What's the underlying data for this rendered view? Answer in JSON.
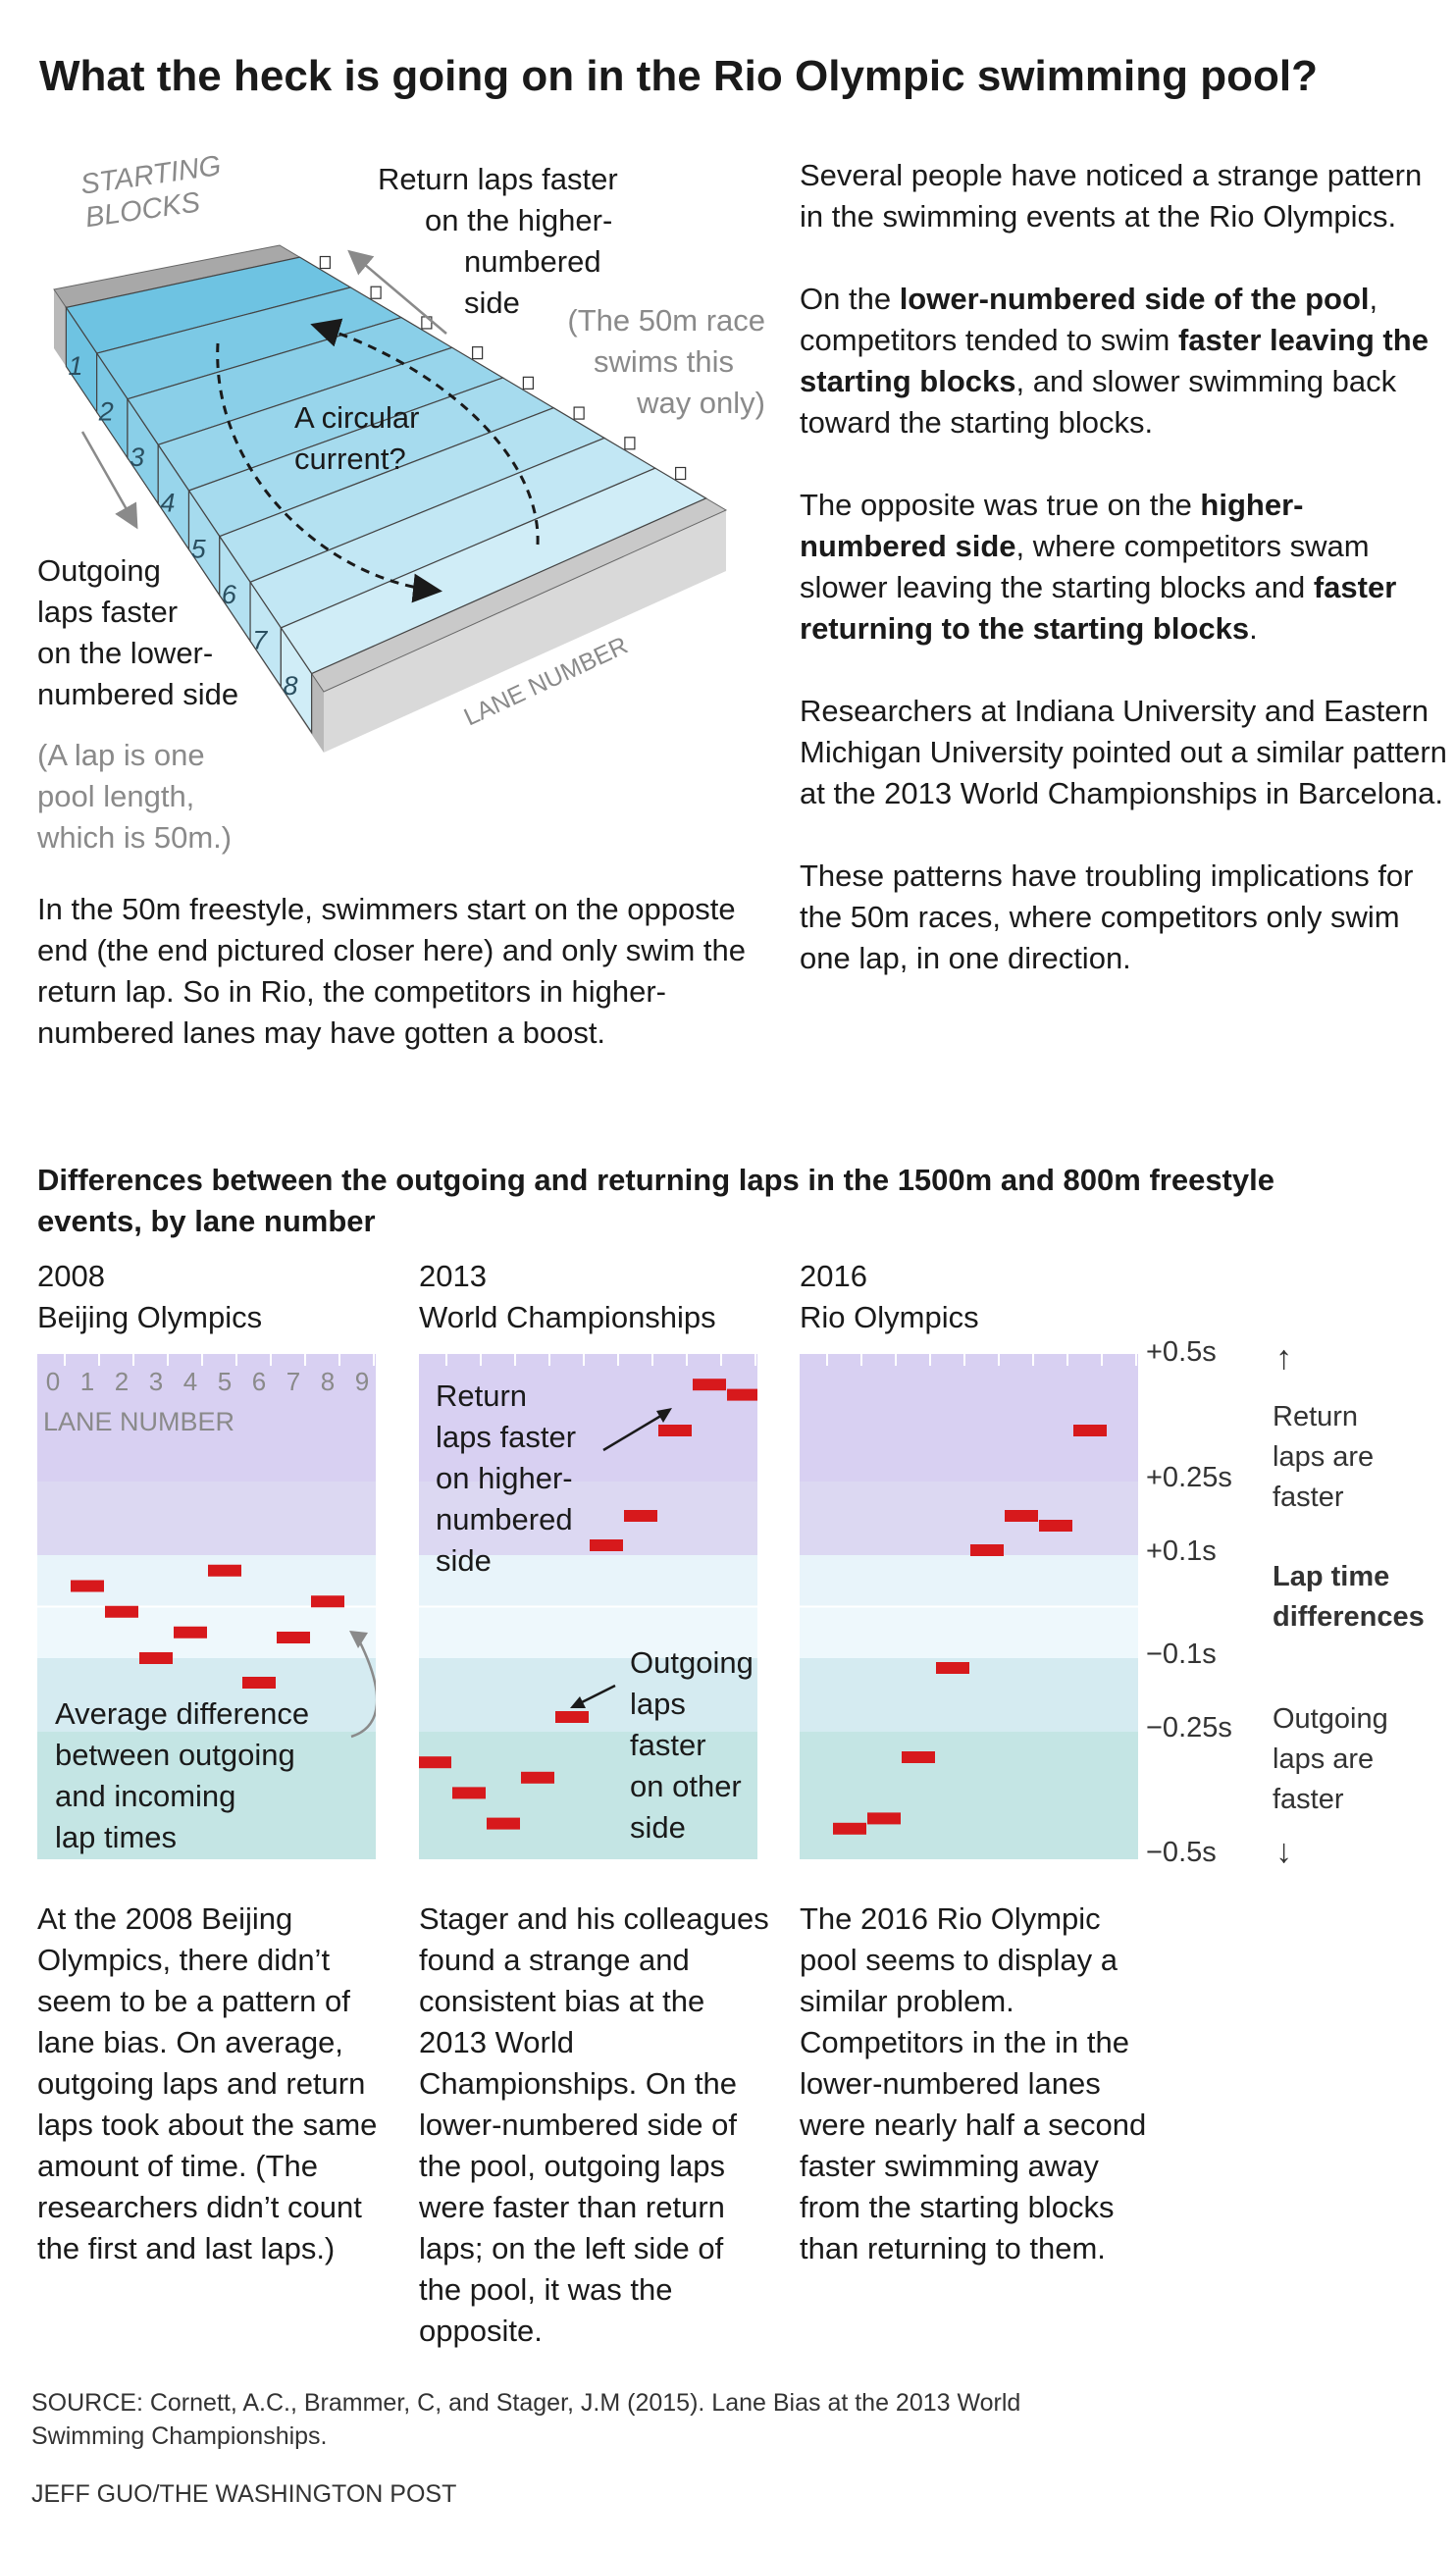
{
  "headline": "What the heck is going on in the Rio Olympic swimming pool?",
  "pool_illustration": {
    "starting_blocks_label": [
      "STARTING",
      "BLOCKS"
    ],
    "return_label": [
      "Return laps faster",
      "on the higher-",
      "numbered side"
    ],
    "fifty_note": [
      "(The 50m race",
      "swims this",
      "way only)"
    ],
    "circular_label": [
      "A circular",
      "current?"
    ],
    "outgoing_label": [
      "Outgoing",
      "laps faster",
      "on the lower-",
      "numbered side"
    ],
    "lap_note": [
      "(A lap is one",
      "pool length,",
      "which is 50m.)"
    ],
    "lane_number_label": "LANE NUMBER",
    "lanes": [
      "1",
      "2",
      "3",
      "4",
      "5",
      "6",
      "7",
      "8"
    ],
    "lane_colors": [
      "#6ec3e2",
      "#7cc9e5",
      "#8acfe8",
      "#98d5eb",
      "#a6dbee",
      "#b4e1f1",
      "#c2e7f4",
      "#d0edf7"
    ]
  },
  "right_column": [
    [
      {
        "t": "Several people have noticed a strange pattern in the swimming events at the Rio Olympics.",
        "b": false
      }
    ],
    [
      {
        "t": "On the ",
        "b": false
      },
      {
        "t": "lower-numbered side of the pool",
        "b": true
      },
      {
        "t": ", competitors tended to swim ",
        "b": false
      },
      {
        "t": "faster leaving the starting blocks",
        "b": true
      },
      {
        "t": ", and slower swimming back toward the starting blocks.",
        "b": false
      }
    ],
    [
      {
        "t": "The opposite was true on the ",
        "b": false
      },
      {
        "t": "higher-numbered side",
        "b": true
      },
      {
        "t": ", where competitors swam slower leaving the starting blocks and ",
        "b": false
      },
      {
        "t": "faster returning to the starting blocks",
        "b": true
      },
      {
        "t": ".",
        "b": false
      }
    ],
    [
      {
        "t": "Researchers at Indiana University and Eastern Michigan University pointed out a similar pattern at the 2013 World Championships in Barcelona.",
        "b": false
      }
    ],
    [
      {
        "t": "These patterns have troubling implications for the 50m races, where competitors only swim one lap, in one direction.",
        "b": false
      }
    ]
  ],
  "intro_bottom": "In the 50m freestyle, swimmers start on the opposte end (the end pictured closer here) and only swim the return lap. So in Rio, the competitors in higher-numbered lanes may have gotten a boost.",
  "section_title": "Differences between the outgoing and returning laps in the 1500m and 800m freestyle events, by lane number",
  "colors": {
    "bar": "#d7191c",
    "bands": [
      "#d8d0f2",
      "#dcd8f2",
      "#e8f4fa",
      "#eef8fc",
      "#d5ebf1",
      "#c4e5e4"
    ]
  },
  "axis": {
    "ticks": [
      "+0.5s",
      "+0.25s",
      "+0.1s",
      "−0.1s",
      "−0.25s",
      "−0.5s"
    ],
    "top_note": [
      "Return",
      "laps are",
      "faster"
    ],
    "middle_label": [
      "Lap time",
      "differences"
    ],
    "bottom_note": [
      "Outgoing",
      "laps are",
      "faster"
    ],
    "up_arrow": "↑",
    "down_arrow": "↓"
  },
  "chart_data": [
    {
      "type": "scatter",
      "year": "2008",
      "event": "Beijing Olympics",
      "xlabel": "LANE NUMBER",
      "x": [
        1,
        2,
        3,
        4,
        5,
        6,
        7,
        8
      ],
      "y": [
        0.04,
        -0.01,
        -0.1,
        -0.05,
        0.07,
        -0.15,
        -0.06,
        0.01
      ],
      "xlim": [
        0,
        9
      ],
      "ylim": [
        -0.5,
        0.5
      ],
      "lane_ticks": [
        "0",
        "1",
        "2",
        "3",
        "4",
        "5",
        "6",
        "7",
        "8",
        "9"
      ],
      "annotations": [
        {
          "text": [
            "Average difference",
            "between outgoing",
            "and incoming",
            "lap times"
          ]
        }
      ],
      "caption": "At the 2008 Beijing Olympics, there didn’t seem to be a pattern of lane bias. On average, outgoing laps and return laps took about the same amount of time. (The researchers didn’t count the first and last laps.)"
    },
    {
      "type": "scatter",
      "year": "2013",
      "event": "World Championships",
      "x": [
        0,
        1,
        2,
        3,
        4,
        5,
        6,
        7,
        8,
        9
      ],
      "y": [
        -0.31,
        -0.37,
        -0.43,
        -0.34,
        -0.22,
        0.12,
        0.18,
        0.35,
        0.44,
        0.42
      ],
      "xlim": [
        0,
        9
      ],
      "ylim": [
        -0.5,
        0.5
      ],
      "annotations": [
        {
          "text": [
            "Return",
            "laps faster",
            "on higher-",
            "numbered",
            "side"
          ]
        },
        {
          "text": [
            "Outgoing",
            "laps",
            "faster",
            "on other",
            "side"
          ]
        }
      ],
      "caption": "Stager and his colleagues found a strange and consistent bias at the 2013 World Championships. On the lower-numbered side of the pool, outgoing laps were faster than return laps; on the left side of the pool, it was the opposite."
    },
    {
      "type": "scatter",
      "year": "2016",
      "event": "Rio Olympics",
      "x": [
        1,
        2,
        3,
        4,
        5,
        6,
        7,
        8
      ],
      "y": [
        -0.44,
        -0.42,
        -0.3,
        -0.12,
        0.11,
        0.18,
        0.16,
        0.35
      ],
      "xlim": [
        0,
        9
      ],
      "ylim": [
        -0.5,
        0.5
      ],
      "caption": "The 2016 Rio Olympic pool seems to display a similar problem. Competitors in the in the lower-numbered lanes were nearly half a second faster swimming away from the starting blocks than returning to them."
    }
  ],
  "source": "SOURCE: Cornett, A.C., Brammer, C, and Stager, J.M (2015). Lane Bias at the 2013 World Swimming Championships.",
  "credit": "JEFF GUO/THE WASHINGTON POST"
}
